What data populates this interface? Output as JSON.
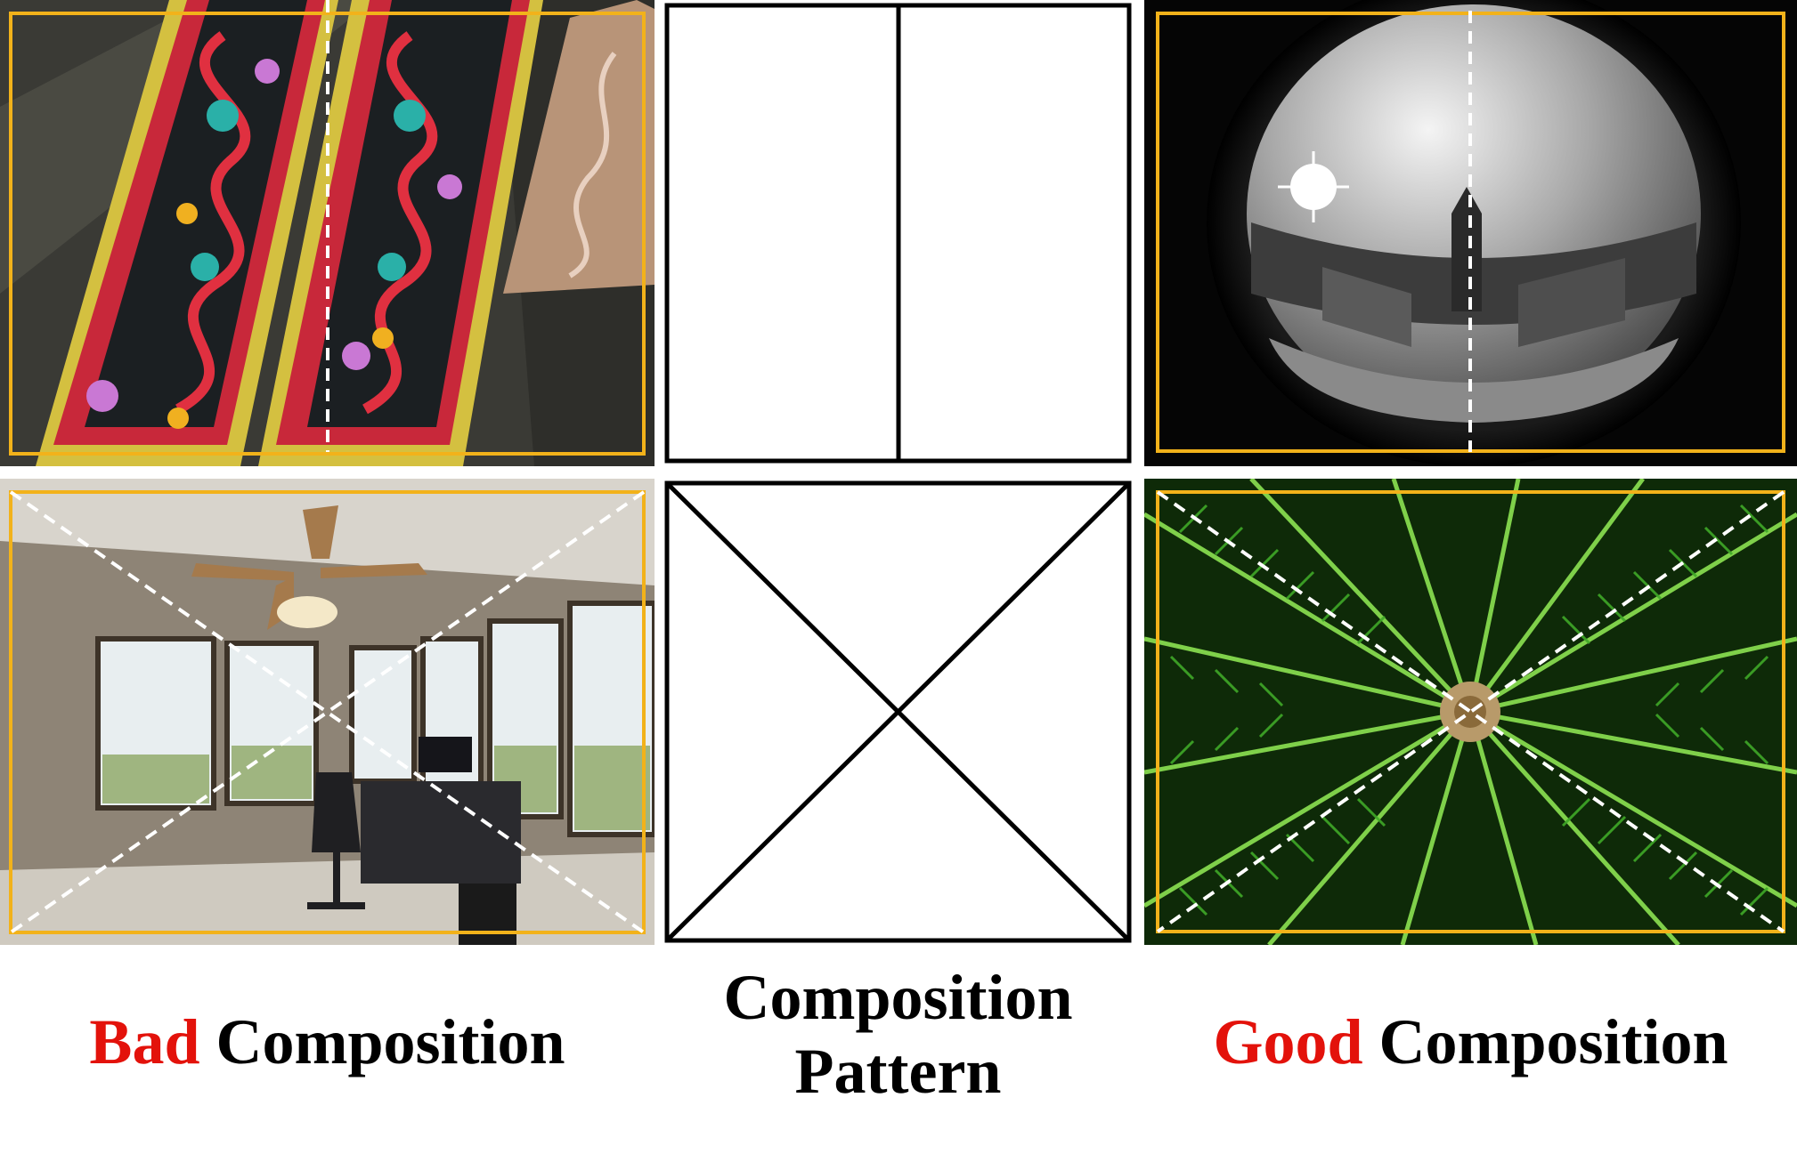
{
  "colors": {
    "frame": "#f2b21a",
    "guide": "#ffffff",
    "pattern_line": "#000000",
    "highlight": "#e3120b"
  },
  "columns": {
    "bad": {
      "word": "Bad",
      "rest": "Composition"
    },
    "pattern": {
      "line1": "Composition",
      "line2": "Pattern"
    },
    "good": {
      "word": "Good",
      "rest": "Composition"
    }
  },
  "rows": [
    {
      "pattern": "vertical-center-line"
    },
    {
      "pattern": "diagonal-cross"
    }
  ]
}
